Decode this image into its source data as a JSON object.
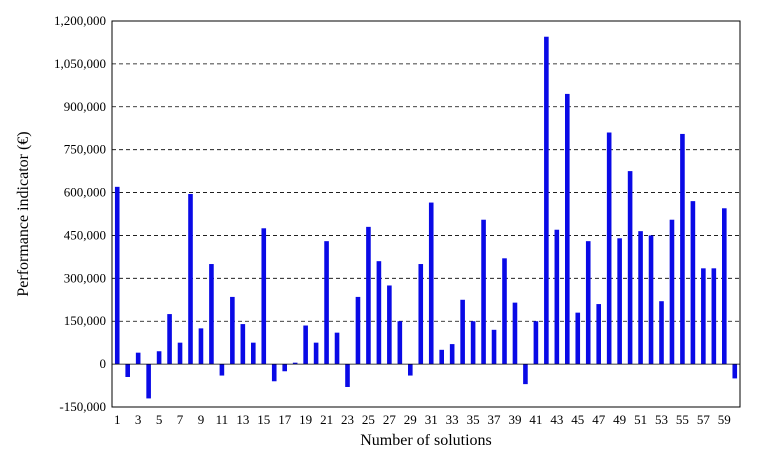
{
  "chart_data": {
    "type": "bar",
    "title": "",
    "xlabel": "Number of solutions",
    "ylabel": "Performance indicator (€)",
    "ylim": [
      -150000,
      1200000
    ],
    "ytick_values": [
      -150000,
      0,
      150000,
      300000,
      450000,
      600000,
      750000,
      900000,
      1050000,
      1200000
    ],
    "ytick_labels": [
      "-150,000",
      "0",
      "150,000",
      "300,000",
      "450,000",
      "600,000",
      "750,000",
      "900,000",
      "1,050,000",
      "1,200,000"
    ],
    "xtick_labels": [
      "1",
      "3",
      "5",
      "7",
      "9",
      "11",
      "13",
      "15",
      "17",
      "19",
      "21",
      "23",
      "25",
      "27",
      "29",
      "31",
      "33",
      "35",
      "37",
      "39",
      "41",
      "43",
      "45",
      "47",
      "49",
      "51",
      "53",
      "55",
      "57",
      "59"
    ],
    "categories": [
      1,
      2,
      3,
      4,
      5,
      6,
      7,
      8,
      9,
      10,
      11,
      12,
      13,
      14,
      15,
      16,
      17,
      18,
      19,
      20,
      21,
      22,
      23,
      24,
      25,
      26,
      27,
      28,
      29,
      30,
      31,
      32,
      33,
      34,
      35,
      36,
      37,
      38,
      39,
      40,
      41,
      42,
      43,
      44,
      45,
      46,
      47,
      48,
      49,
      50,
      51,
      52,
      53,
      54,
      55,
      56,
      57,
      58,
      59,
      60
    ],
    "values": [
      620000,
      -45000,
      40000,
      -120000,
      45000,
      175000,
      75000,
      595000,
      125000,
      350000,
      -40000,
      235000,
      140000,
      75000,
      475000,
      -60000,
      -25000,
      5000,
      135000,
      75000,
      430000,
      110000,
      -80000,
      235000,
      480000,
      360000,
      275000,
      150000,
      -40000,
      350000,
      565000,
      50000,
      70000,
      225000,
      150000,
      505000,
      120000,
      370000,
      215000,
      -70000,
      150000,
      1145000,
      470000,
      945000,
      180000,
      430000,
      210000,
      810000,
      440000,
      675000,
      465000,
      450000,
      220000,
      505000,
      805000,
      570000,
      335000,
      335000,
      545000,
      -50000
    ],
    "grid": true,
    "bar_color": "#0a0ae6"
  }
}
